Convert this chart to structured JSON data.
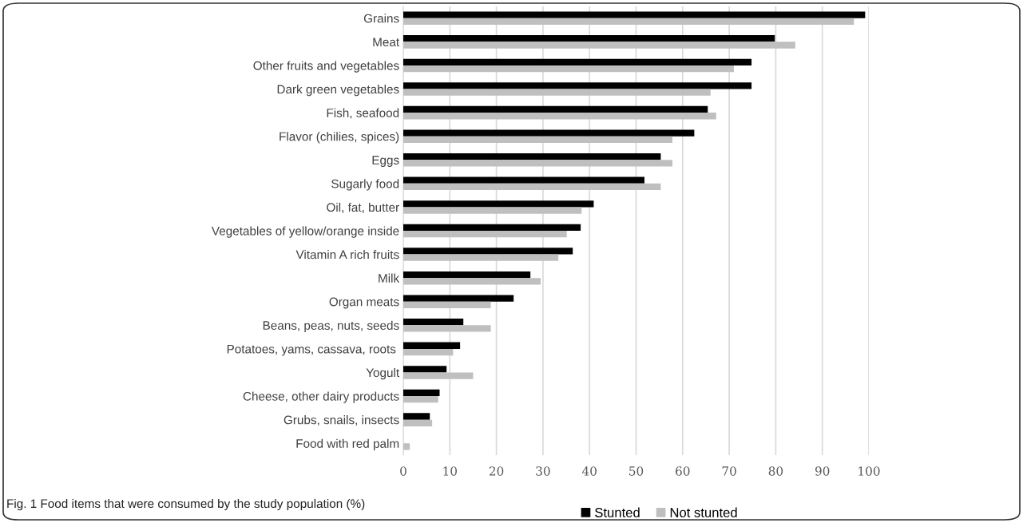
{
  "chart_data": {
    "type": "bar",
    "orientation": "horizontal",
    "categories": [
      "Grains",
      "Meat",
      "Other fruits and vegetables",
      "Dark green vegetables",
      "Fish, seafood",
      "Flavor (chilies, spices)",
      "Eggs",
      "Sugarly food",
      "Oil, fat, butter",
      "Vegetables of yellow/orange inside",
      "Vitamin A rich fruits",
      "Milk",
      "Organ meats",
      "Beans, peas, nuts, seeds",
      "Potatoes, yams, cassava, roots ",
      "Yogult",
      "Cheese, other dairy products",
      "Grubs, snails, insects",
      "Food with red palm"
    ],
    "series": [
      {
        "name": "Stunted",
        "color": "#000000",
        "values": [
          99.2,
          79.8,
          74.8,
          74.8,
          65.4,
          62.5,
          55.3,
          51.8,
          40.9,
          38.1,
          36.4,
          27.3,
          23.7,
          12.9,
          12.2,
          9.3,
          7.8,
          5.7,
          0
        ]
      },
      {
        "name": "Not stunted",
        "color": "#bfbfbf",
        "values": [
          96.8,
          84.2,
          71.0,
          66.0,
          67.2,
          57.8,
          57.8,
          55.3,
          38.3,
          35.1,
          33.3,
          29.5,
          18.8,
          18.8,
          10.7,
          15.0,
          7.5,
          6.2,
          1.4
        ]
      }
    ],
    "xlim": [
      0,
      100
    ],
    "xticks": [
      0,
      10,
      20,
      30,
      40,
      50,
      60,
      70,
      80,
      90,
      100
    ],
    "grid": "x",
    "legend": "bottom",
    "annotations": [
      "Fig. 1 Food items that were consumed by the study population (%)"
    ]
  }
}
